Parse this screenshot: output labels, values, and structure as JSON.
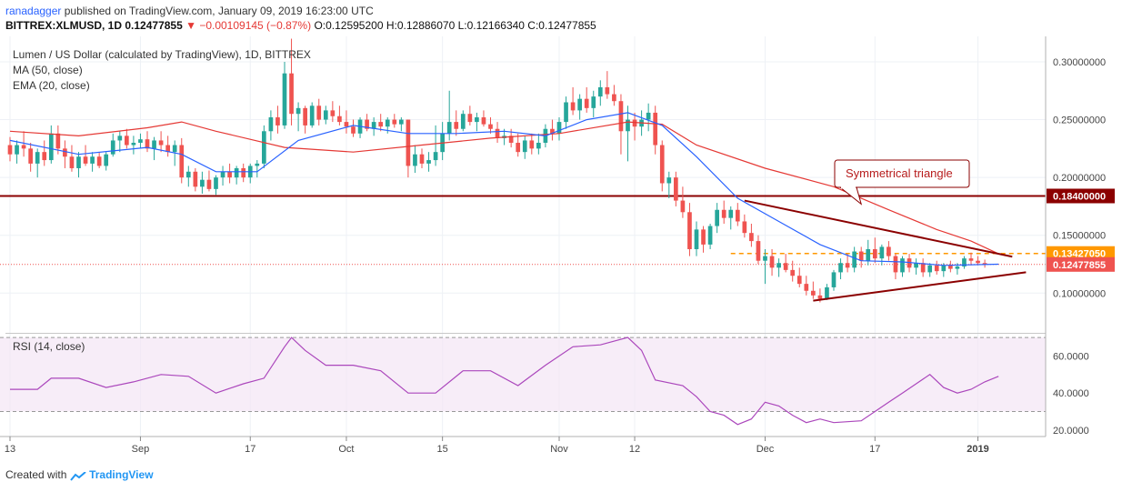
{
  "header": {
    "user": "ranadagger",
    "published": "published on TradingView.com, January 09, 2019 16:23:00 UTC",
    "symbol": "BITTREX:XLMUSD, 1D",
    "price": "0.12477855",
    "change": "▼ −0.00109145 (−0.87%)",
    "ohlc": "O:0.12595200 H:0.12886070 L:0.12166340 C:0.12477855"
  },
  "footer": {
    "created": "Created with",
    "brand": "TradingView"
  },
  "colors": {
    "up": "#26a69a",
    "down": "#ef5350",
    "ma": "#e53935",
    "ema": "#2962ff",
    "rsi": "#ab47bc",
    "resistance": "#8b0000",
    "level": "#ff9800"
  },
  "chart_data": {
    "type": "candlestick",
    "title": "Lumen / US Dollar (calculated by TradingView), 1D, BITTREX",
    "legend": [
      "MA (50, close)",
      "EMA (20, close)"
    ],
    "yticks": [
      "0.30000000",
      "0.25000000",
      "0.20000000",
      "0.15000000",
      "0.10000000"
    ],
    "ytick_values": [
      0.3,
      0.25,
      0.2,
      0.15,
      0.1
    ],
    "ylim": [
      0.068,
      0.322
    ],
    "xticks": [
      {
        "label": "13",
        "day": 0
      },
      {
        "label": "Sep",
        "day": 19
      },
      {
        "label": "17",
        "day": 35
      },
      {
        "label": "Oct",
        "day": 49
      },
      {
        "label": "15",
        "day": 63
      },
      {
        "label": "Nov",
        "day": 80
      },
      {
        "label": "12",
        "day": 91
      },
      {
        "label": "Dec",
        "day": 110
      },
      {
        "label": "17",
        "day": 126
      },
      {
        "label": "2019",
        "day": 141
      }
    ],
    "ohlc": [
      [
        0.228,
        0.235,
        0.214,
        0.22
      ],
      [
        0.22,
        0.232,
        0.212,
        0.228
      ],
      [
        0.228,
        0.24,
        0.218,
        0.225
      ],
      [
        0.225,
        0.23,
        0.205,
        0.212
      ],
      [
        0.212,
        0.225,
        0.2,
        0.222
      ],
      [
        0.222,
        0.232,
        0.21,
        0.215
      ],
      [
        0.215,
        0.245,
        0.212,
        0.238
      ],
      [
        0.238,
        0.245,
        0.22,
        0.225
      ],
      [
        0.225,
        0.232,
        0.208,
        0.218
      ],
      [
        0.218,
        0.228,
        0.205,
        0.208
      ],
      [
        0.208,
        0.222,
        0.2,
        0.218
      ],
      [
        0.218,
        0.228,
        0.21,
        0.212
      ],
      [
        0.212,
        0.222,
        0.205,
        0.218
      ],
      [
        0.218,
        0.222,
        0.208,
        0.21
      ],
      [
        0.21,
        0.222,
        0.206,
        0.22
      ],
      [
        0.22,
        0.238,
        0.218,
        0.232
      ],
      [
        0.232,
        0.24,
        0.222,
        0.236
      ],
      [
        0.236,
        0.242,
        0.225,
        0.228
      ],
      [
        0.228,
        0.236,
        0.22,
        0.23
      ],
      [
        0.23,
        0.238,
        0.225,
        0.233
      ],
      [
        0.233,
        0.24,
        0.222,
        0.225
      ],
      [
        0.225,
        0.235,
        0.215,
        0.232
      ],
      [
        0.232,
        0.24,
        0.222,
        0.228
      ],
      [
        0.228,
        0.236,
        0.218,
        0.222
      ],
      [
        0.222,
        0.232,
        0.21,
        0.228
      ],
      [
        0.228,
        0.234,
        0.195,
        0.2
      ],
      [
        0.2,
        0.21,
        0.192,
        0.205
      ],
      [
        0.205,
        0.208,
        0.188,
        0.192
      ],
      [
        0.192,
        0.205,
        0.186,
        0.198
      ],
      [
        0.198,
        0.206,
        0.188,
        0.19
      ],
      [
        0.19,
        0.202,
        0.185,
        0.2
      ],
      [
        0.2,
        0.21,
        0.193,
        0.205
      ],
      [
        0.205,
        0.212,
        0.195,
        0.2
      ],
      [
        0.2,
        0.21,
        0.194,
        0.208
      ],
      [
        0.208,
        0.212,
        0.196,
        0.2
      ],
      [
        0.2,
        0.212,
        0.195,
        0.21
      ],
      [
        0.21,
        0.215,
        0.2,
        0.212
      ],
      [
        0.212,
        0.245,
        0.208,
        0.24
      ],
      [
        0.24,
        0.258,
        0.232,
        0.252
      ],
      [
        0.252,
        0.262,
        0.238,
        0.245
      ],
      [
        0.245,
        0.3,
        0.242,
        0.29
      ],
      [
        0.29,
        0.32,
        0.245,
        0.255
      ],
      [
        0.255,
        0.265,
        0.24,
        0.26
      ],
      [
        0.26,
        0.262,
        0.238,
        0.245
      ],
      [
        0.245,
        0.265,
        0.243,
        0.262
      ],
      [
        0.262,
        0.268,
        0.245,
        0.25
      ],
      [
        0.25,
        0.262,
        0.246,
        0.258
      ],
      [
        0.258,
        0.266,
        0.248,
        0.253
      ],
      [
        0.253,
        0.262,
        0.245,
        0.248
      ],
      [
        0.248,
        0.258,
        0.238,
        0.244
      ],
      [
        0.244,
        0.25,
        0.235,
        0.238
      ],
      [
        0.238,
        0.252,
        0.234,
        0.25
      ],
      [
        0.25,
        0.255,
        0.24,
        0.242
      ],
      [
        0.242,
        0.252,
        0.236,
        0.248
      ],
      [
        0.248,
        0.255,
        0.24,
        0.244
      ],
      [
        0.244,
        0.252,
        0.238,
        0.25
      ],
      [
        0.25,
        0.255,
        0.243,
        0.246
      ],
      [
        0.246,
        0.252,
        0.24,
        0.25
      ],
      [
        0.25,
        0.25,
        0.2,
        0.21
      ],
      [
        0.21,
        0.228,
        0.204,
        0.22
      ],
      [
        0.22,
        0.225,
        0.208,
        0.212
      ],
      [
        0.212,
        0.222,
        0.205,
        0.215
      ],
      [
        0.215,
        0.245,
        0.21,
        0.222
      ],
      [
        0.222,
        0.248,
        0.215,
        0.238
      ],
      [
        0.238,
        0.275,
        0.232,
        0.248
      ],
      [
        0.248,
        0.258,
        0.236,
        0.242
      ],
      [
        0.242,
        0.258,
        0.24,
        0.255
      ],
      [
        0.255,
        0.262,
        0.245,
        0.248
      ],
      [
        0.248,
        0.256,
        0.24,
        0.252
      ],
      [
        0.252,
        0.258,
        0.244,
        0.246
      ],
      [
        0.246,
        0.252,
        0.238,
        0.242
      ],
      [
        0.242,
        0.248,
        0.23,
        0.234
      ],
      [
        0.234,
        0.242,
        0.228,
        0.236
      ],
      [
        0.236,
        0.242,
        0.226,
        0.23
      ],
      [
        0.23,
        0.238,
        0.218,
        0.222
      ],
      [
        0.222,
        0.236,
        0.216,
        0.232
      ],
      [
        0.232,
        0.238,
        0.22,
        0.225
      ],
      [
        0.225,
        0.238,
        0.22,
        0.23
      ],
      [
        0.23,
        0.246,
        0.226,
        0.242
      ],
      [
        0.242,
        0.25,
        0.232,
        0.238
      ],
      [
        0.238,
        0.252,
        0.232,
        0.248
      ],
      [
        0.248,
        0.27,
        0.242,
        0.265
      ],
      [
        0.265,
        0.278,
        0.254,
        0.258
      ],
      [
        0.258,
        0.272,
        0.25,
        0.268
      ],
      [
        0.268,
        0.278,
        0.256,
        0.26
      ],
      [
        0.26,
        0.275,
        0.252,
        0.27
      ],
      [
        0.27,
        0.284,
        0.262,
        0.278
      ],
      [
        0.278,
        0.292,
        0.268,
        0.272
      ],
      [
        0.272,
        0.28,
        0.262,
        0.266
      ],
      [
        0.266,
        0.272,
        0.22,
        0.24
      ],
      [
        0.24,
        0.262,
        0.214,
        0.25
      ],
      [
        0.25,
        0.256,
        0.232,
        0.244
      ],
      [
        0.244,
        0.258,
        0.236,
        0.25
      ],
      [
        0.25,
        0.264,
        0.24,
        0.256
      ],
      [
        0.256,
        0.262,
        0.22,
        0.228
      ],
      [
        0.228,
        0.232,
        0.188,
        0.195
      ],
      [
        0.195,
        0.205,
        0.182,
        0.2
      ],
      [
        0.2,
        0.205,
        0.175,
        0.18
      ],
      [
        0.18,
        0.192,
        0.165,
        0.17
      ],
      [
        0.17,
        0.178,
        0.132,
        0.138
      ],
      [
        0.138,
        0.162,
        0.132,
        0.155
      ],
      [
        0.155,
        0.158,
        0.135,
        0.142
      ],
      [
        0.142,
        0.16,
        0.138,
        0.158
      ],
      [
        0.158,
        0.178,
        0.152,
        0.172
      ],
      [
        0.172,
        0.18,
        0.16,
        0.165
      ],
      [
        0.165,
        0.175,
        0.155,
        0.172
      ],
      [
        0.172,
        0.178,
        0.158,
        0.162
      ],
      [
        0.162,
        0.168,
        0.148,
        0.152
      ],
      [
        0.152,
        0.16,
        0.14,
        0.145
      ],
      [
        0.145,
        0.15,
        0.125,
        0.128
      ],
      [
        0.128,
        0.138,
        0.108,
        0.132
      ],
      [
        0.132,
        0.138,
        0.115,
        0.122
      ],
      [
        0.122,
        0.13,
        0.114,
        0.126
      ],
      [
        0.126,
        0.134,
        0.118,
        0.12
      ],
      [
        0.12,
        0.128,
        0.11,
        0.115
      ],
      [
        0.115,
        0.122,
        0.105,
        0.108
      ],
      [
        0.108,
        0.115,
        0.098,
        0.102
      ],
      [
        0.102,
        0.11,
        0.095,
        0.098
      ],
      [
        0.098,
        0.104,
        0.092,
        0.095
      ],
      [
        0.095,
        0.108,
        0.094,
        0.105
      ],
      [
        0.105,
        0.12,
        0.102,
        0.118
      ],
      [
        0.118,
        0.13,
        0.112,
        0.126
      ],
      [
        0.126,
        0.134,
        0.118,
        0.122
      ],
      [
        0.122,
        0.14,
        0.118,
        0.136
      ],
      [
        0.136,
        0.14,
        0.122,
        0.128
      ],
      [
        0.128,
        0.146,
        0.124,
        0.138
      ],
      [
        0.138,
        0.148,
        0.126,
        0.13
      ],
      [
        0.13,
        0.142,
        0.124,
        0.14
      ],
      [
        0.14,
        0.145,
        0.128,
        0.132
      ],
      [
        0.132,
        0.134,
        0.112,
        0.118
      ],
      [
        0.118,
        0.132,
        0.114,
        0.13
      ],
      [
        0.13,
        0.134,
        0.118,
        0.122
      ],
      [
        0.122,
        0.13,
        0.116,
        0.126
      ],
      [
        0.126,
        0.13,
        0.114,
        0.118
      ],
      [
        0.118,
        0.126,
        0.114,
        0.124
      ],
      [
        0.124,
        0.128,
        0.116,
        0.119
      ],
      [
        0.119,
        0.126,
        0.114,
        0.124
      ],
      [
        0.124,
        0.128,
        0.118,
        0.121
      ],
      [
        0.121,
        0.126,
        0.116,
        0.123
      ],
      [
        0.123,
        0.132,
        0.121,
        0.13
      ],
      [
        0.13,
        0.135,
        0.124,
        0.128
      ],
      [
        0.128,
        0.132,
        0.124,
        0.126
      ],
      [
        0.126,
        0.129,
        0.122,
        0.125
      ]
    ],
    "ma50": [
      [
        0,
        0.24
      ],
      [
        10,
        0.236
      ],
      [
        20,
        0.243
      ],
      [
        25,
        0.248
      ],
      [
        30,
        0.24
      ],
      [
        40,
        0.226
      ],
      [
        50,
        0.222
      ],
      [
        60,
        0.228
      ],
      [
        70,
        0.234
      ],
      [
        80,
        0.238
      ],
      [
        90,
        0.248
      ],
      [
        95,
        0.246
      ],
      [
        100,
        0.228
      ],
      [
        110,
        0.208
      ],
      [
        120,
        0.192
      ],
      [
        128,
        0.172
      ],
      [
        135,
        0.155
      ],
      [
        140,
        0.145
      ],
      [
        144,
        0.134
      ]
    ],
    "ema20": [
      [
        0,
        0.232
      ],
      [
        10,
        0.22
      ],
      [
        20,
        0.226
      ],
      [
        25,
        0.22
      ],
      [
        30,
        0.205
      ],
      [
        36,
        0.205
      ],
      [
        42,
        0.232
      ],
      [
        50,
        0.245
      ],
      [
        58,
        0.238
      ],
      [
        65,
        0.238
      ],
      [
        72,
        0.24
      ],
      [
        78,
        0.236
      ],
      [
        84,
        0.25
      ],
      [
        90,
        0.256
      ],
      [
        95,
        0.245
      ],
      [
        100,
        0.218
      ],
      [
        106,
        0.182
      ],
      [
        112,
        0.162
      ],
      [
        118,
        0.142
      ],
      [
        124,
        0.128
      ],
      [
        130,
        0.127
      ],
      [
        136,
        0.124
      ],
      [
        144,
        0.125
      ]
    ],
    "rsi_title": "RSI (14, close)",
    "rsi_ylim": [
      17,
      72
    ],
    "rsi_band": [
      30,
      70
    ],
    "rsi_yticks": [
      "60.0000",
      "40.0000",
      "20.0000"
    ],
    "rsi_ytick_values": [
      60,
      40,
      20
    ],
    "rsi": [
      [
        0,
        42
      ],
      [
        4,
        42
      ],
      [
        6,
        48
      ],
      [
        10,
        48
      ],
      [
        14,
        43
      ],
      [
        18,
        46
      ],
      [
        22,
        50
      ],
      [
        26,
        49
      ],
      [
        30,
        40
      ],
      [
        34,
        45
      ],
      [
        37,
        48
      ],
      [
        40,
        65
      ],
      [
        41,
        70
      ],
      [
        43,
        63
      ],
      [
        46,
        55
      ],
      [
        50,
        55
      ],
      [
        54,
        52
      ],
      [
        58,
        40
      ],
      [
        62,
        40
      ],
      [
        66,
        52
      ],
      [
        70,
        52
      ],
      [
        74,
        44
      ],
      [
        78,
        55
      ],
      [
        82,
        65
      ],
      [
        86,
        66
      ],
      [
        90,
        70
      ],
      [
        92,
        63
      ],
      [
        94,
        47
      ],
      [
        98,
        44
      ],
      [
        100,
        38
      ],
      [
        102,
        30
      ],
      [
        104,
        28
      ],
      [
        106,
        23
      ],
      [
        108,
        26
      ],
      [
        110,
        35
      ],
      [
        112,
        33
      ],
      [
        114,
        28
      ],
      [
        116,
        24
      ],
      [
        118,
        26
      ],
      [
        120,
        24
      ],
      [
        124,
        25
      ],
      [
        126,
        30
      ],
      [
        128,
        35
      ],
      [
        130,
        40
      ],
      [
        132,
        45
      ],
      [
        134,
        50
      ],
      [
        136,
        43
      ],
      [
        138,
        40
      ],
      [
        140,
        42
      ],
      [
        142,
        46
      ],
      [
        144,
        49
      ]
    ],
    "horizontal_line": {
      "value": 0.184,
      "label": "0.18400000"
    },
    "dashed_level": {
      "value": 0.1342705,
      "label": "0.13427050",
      "from_day": 105
    },
    "current_price": {
      "value": 0.12477855,
      "label": "0.12477855"
    },
    "triangle": {
      "upper": [
        [
          107,
          0.18
        ],
        [
          146,
          0.1315
        ]
      ],
      "lower": [
        [
          117,
          0.0935
        ],
        [
          148,
          0.118
        ]
      ]
    },
    "annotation": {
      "text": "Symmetrical triangle",
      "pointer_day": 124,
      "pointer_value": 0.177
    }
  }
}
